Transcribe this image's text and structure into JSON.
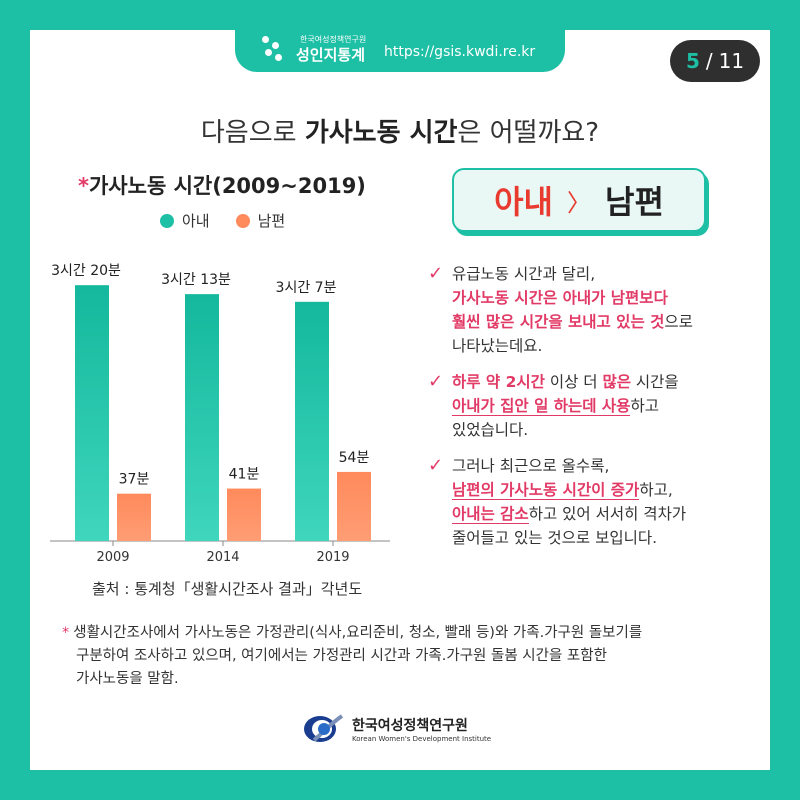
{
  "header": {
    "brand_small": "한국여성정책연구원",
    "brand_big": "성인지통계",
    "url": "https://gsis.kwdi.re.kr",
    "page_current": "5",
    "page_sep": "/",
    "page_total": "11"
  },
  "headline": {
    "prefix": "다음으로 ",
    "bold": "가사노동 시간",
    "suffix": "은 어떨까요?"
  },
  "chart_data": {
    "type": "bar",
    "title_star": "*",
    "title": "가사노동 시간(2009~2019)",
    "categories": [
      "2009",
      "2014",
      "2019"
    ],
    "series": [
      {
        "name": "아내",
        "values": [
          200,
          193,
          187
        ],
        "labels": [
          "3시간 20분",
          "3시간 13분",
          "3시간 7분"
        ],
        "color": "#1dbfa5"
      },
      {
        "name": "남편",
        "values": [
          37,
          41,
          54
        ],
        "labels": [
          "37분",
          "41분",
          "54분"
        ],
        "color": "#ff8a5c"
      }
    ],
    "unit": "minutes",
    "ylim": [
      0,
      215
    ],
    "grid": false,
    "legend": "top"
  },
  "source": "출처 : 통계청「생활시간조사 결과」각년도",
  "compare": {
    "wife": "아내",
    "gt": "〉",
    "husband": "남편"
  },
  "points": [
    {
      "l1": "유급노동 시간과 달리,",
      "l2": "가사노동 시간은 아내가 남편보다",
      "l3a": "훨씬 많은 시간을 보내고 있는 것",
      "l3b": "으로",
      "l4": "나타났는데요."
    },
    {
      "l1a": "하루 약 2시간",
      "l1b": " 이상 더 ",
      "l1c": "많은",
      "l1d": " 시간을",
      "l2a": "아내가 집안 일 하는데 사용",
      "l2b": "하고",
      "l3": "있었습니다."
    },
    {
      "l1": "그러나 최근으로 올수록,",
      "l2a": "남편의 가사노동 시간이 증가",
      "l2b": "하고,",
      "l3a": "아내는 감소",
      "l3b": "하고 있어 서서히 격차가",
      "l4": "줄어들고 있는 것으로 보입니다."
    }
  ],
  "footnote": {
    "star": "*",
    "l1": "생활시간조사에서 가사노동은 가정관리(식사,요리준비, 청소, 빨래 등)와 가족.가구원 돌보기를",
    "l2": "구분하여 조사하고 있으며, 여기에서는 가정관리 시간과 가족.가구원 돌봄 시간을 포함한",
    "l3": "가사노동을 말함."
  },
  "footer": {
    "name_ko": "한국여성정책연구원",
    "name_en": "Korean Women's Development Institute"
  },
  "colors": {
    "accent": "#1dbfa5",
    "wife": "#1dbfa5",
    "husband": "#ff8a5c",
    "highlight": "#e23a66"
  }
}
